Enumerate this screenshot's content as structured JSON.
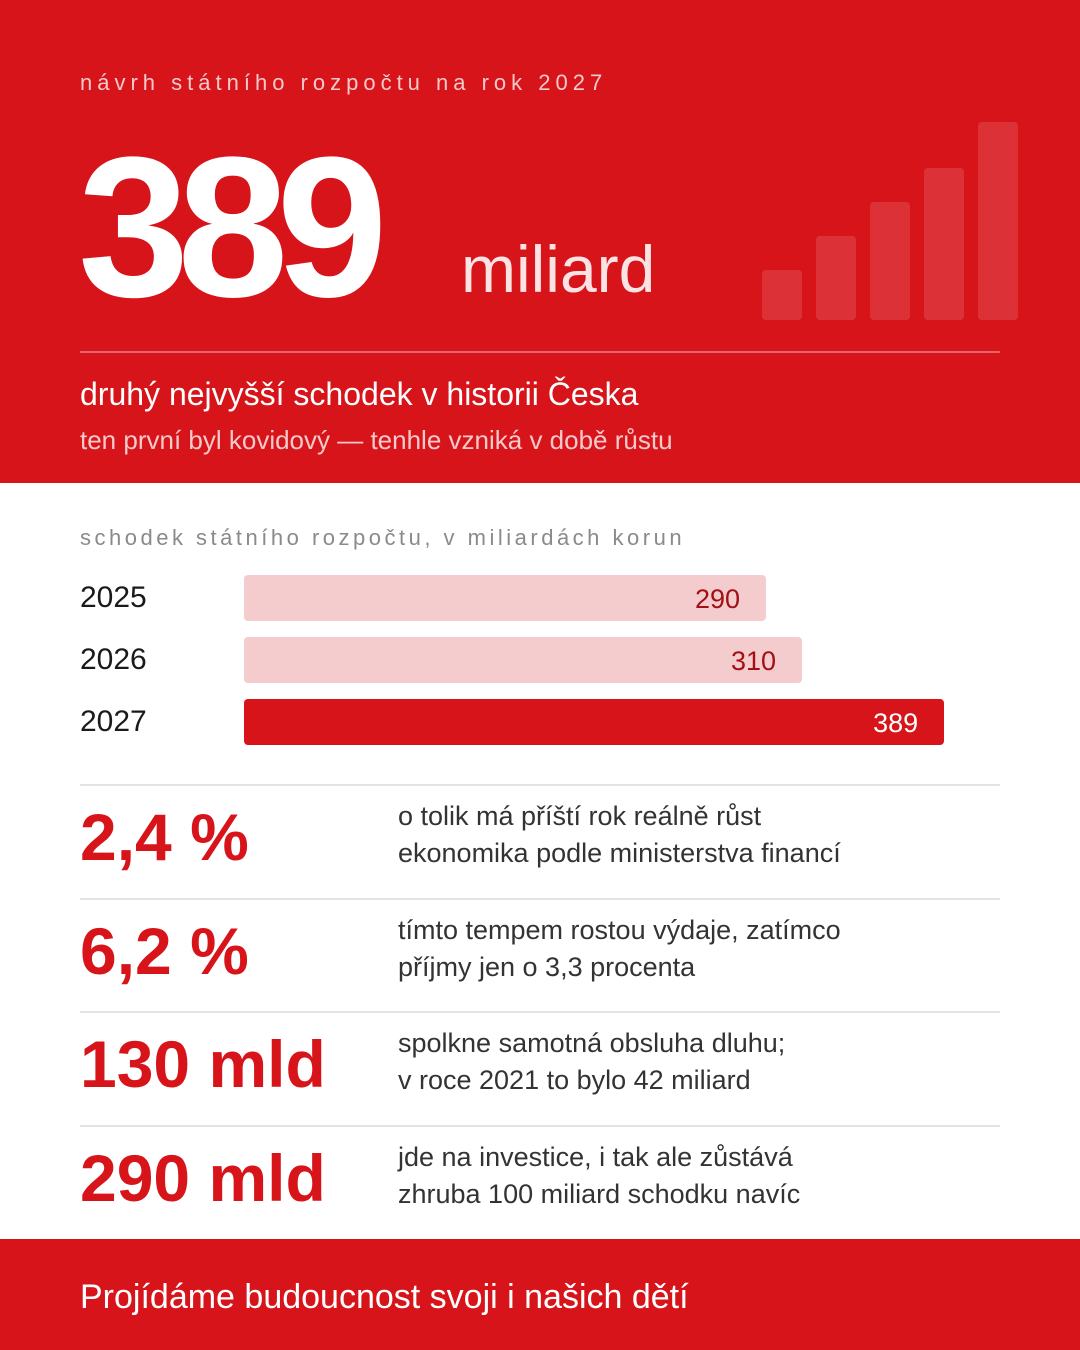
{
  "hero": {
    "kicker": "návrh státního rozpočtu na rok 2027",
    "number": "389",
    "unit": "miliard",
    "headline": "druhý nejvyšší schodek v historii Česka",
    "subheadline": "ten první byl kovidový — tenhle vzniká v době růstu"
  },
  "chart_data": {
    "type": "bar",
    "orientation": "horizontal",
    "title": "schodek státního rozpočtu, v miliardách korun",
    "categories": [
      "2025",
      "2026",
      "2027"
    ],
    "values": [
      290,
      310,
      389
    ],
    "value_labels": [
      "290",
      "310",
      "389"
    ],
    "xlim": [
      0,
      420
    ],
    "colors": {
      "past": "#f5cccd",
      "current": "#d7141a"
    }
  },
  "stats": [
    {
      "value": "2,4 %",
      "line1": "o tolik má příští rok reálně růst",
      "line2": "ekonomika podle ministerstva financí"
    },
    {
      "value": "6,2 %",
      "line1": "tímto tempem rostou výdaje, zatímco",
      "line2": "příjmy jen o 3,3 procenta"
    },
    {
      "value": "130 mld",
      "line1": "spolkne samotná obsluha dluhu;",
      "line2": "v roce 2021 to bylo 42 miliard"
    },
    {
      "value": "290 mld",
      "line1": "jde na investice, i tak ale zůstává",
      "line2": "zhruba 100 miliard schodku navíc"
    }
  ],
  "footer": {
    "text": "Projídáme budoucnost svoji i našich dětí"
  },
  "colors": {
    "accent": "#d7141a",
    "accent_light": "#f5cccd"
  },
  "decor": {
    "icon": "rising-bars-icon"
  }
}
